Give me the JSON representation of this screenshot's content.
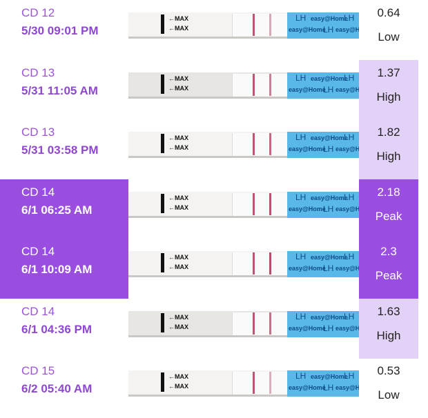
{
  "colors": {
    "accent": "#9a4ee0",
    "label_text": "#9b54d8",
    "high_bg": "#e3d2f7",
    "strip_blue": "#5ab8e8",
    "test_line": "#b03a5a"
  },
  "strip": {
    "max_label": "←MAX",
    "brand": "easy@Home",
    "lh": "LH"
  },
  "entries": [
    {
      "cd": "CD 12",
      "datetime": "5/30  09:01 PM",
      "value": "0.64",
      "level": "Low",
      "state": "low",
      "ratio": 0.64
    },
    {
      "cd": "CD 13",
      "datetime": "5/31  11:05 AM",
      "value": "1.37",
      "level": "High",
      "state": "high",
      "ratio": 1.37
    },
    {
      "cd": "CD 13",
      "datetime": "5/31  03:58 PM",
      "value": "1.82",
      "level": "High",
      "state": "high",
      "ratio": 1.82
    },
    {
      "cd": "CD 14",
      "datetime": "6/1  06:25 AM",
      "value": "2.18",
      "level": "Peak",
      "state": "peak",
      "ratio": 2.18
    },
    {
      "cd": "CD 14",
      "datetime": "6/1  10:09 AM",
      "value": "2.3",
      "level": "Peak",
      "state": "peak",
      "ratio": 2.3
    },
    {
      "cd": "CD 14",
      "datetime": "6/1  04:36 PM",
      "value": "1.63",
      "level": "High",
      "state": "high",
      "ratio": 1.63
    },
    {
      "cd": "CD 15",
      "datetime": "6/2  05:40 AM",
      "value": "0.53",
      "level": "Low",
      "state": "low",
      "ratio": 0.53
    }
  ]
}
